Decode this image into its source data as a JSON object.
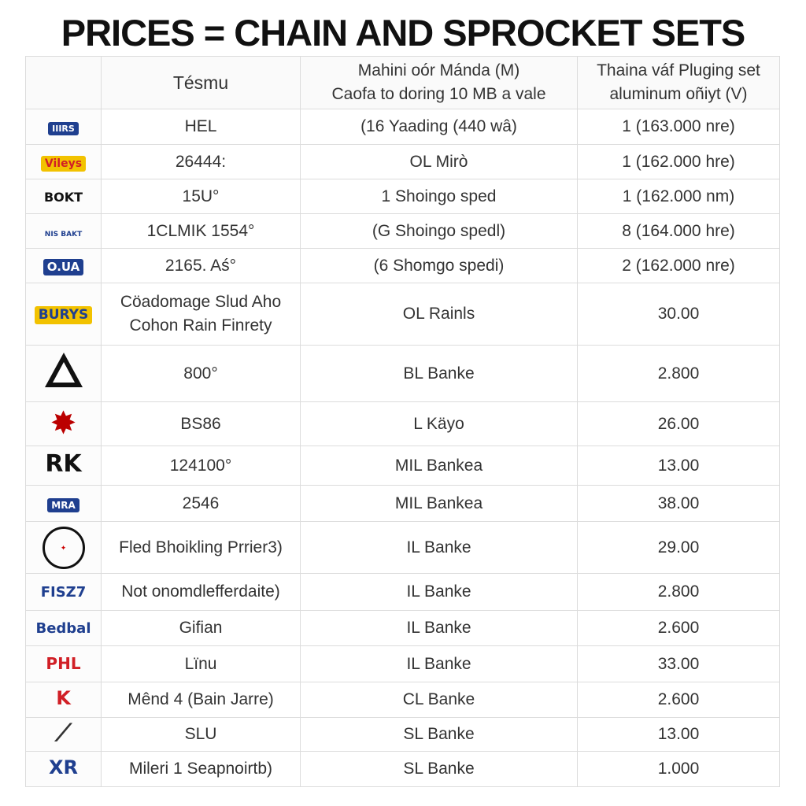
{
  "title": "PRICES = CHAIN AND SPROCKET SETS",
  "headers": {
    "brand": "",
    "col1": "Tésmu",
    "col2_line1": "Mahini oór Mánda (M)",
    "col2_line2": "Caofa to doring 10 MB a vale",
    "col3_line1": "Thaina váf Pluging set",
    "col3_line2": "aluminum oñiyt (V)"
  },
  "colors": {
    "red": "#d11f26",
    "blue": "#1f3f8f",
    "yellow": "#f2c200",
    "black": "#111111"
  },
  "rows": [
    {
      "logo_icon": "honda-shield-icon",
      "logo_text": "IIIRS",
      "col1_line1": "HEL",
      "col1_line2": "",
      "col2": "(16 Yaading (440 wâ)",
      "col3": "1 (163.000 nre)"
    },
    {
      "logo_icon": "yellow-badge-icon",
      "logo_text": "Vileys",
      "col1_line1": "26444:",
      "col1_line2": "",
      "col2": "OL Mirò",
      "col3": "1 (162.000 hre)"
    },
    {
      "logo_icon": "bokt-wordmark-icon",
      "logo_text": "BOKT",
      "col1_line1": "15U°",
      "col1_line2": "",
      "col2": "1 Shoingo sped",
      "col3": "1 (162.000 nm)"
    },
    {
      "logo_icon": "winged-emblem-icon",
      "logo_text": "NIS BAKT",
      "col1_line1": "1CLMIK 1554°",
      "col1_line2": "",
      "col2": "(G Shoingo spedl)",
      "col3": "8 (164.000 hre)"
    },
    {
      "logo_icon": "oua-badge-icon",
      "logo_text": "O.UA",
      "col1_line1": "2165. Aś°",
      "col1_line2": "",
      "col2": "(6 Shomgo spedi)",
      "col3": "2 (162.000 nre)"
    },
    {
      "logo_icon": "burys-badge-icon",
      "logo_text": "BURYS",
      "col1_line1": "Cöadomage Slud Aho",
      "col1_line2": "Cohon Rain Finrety",
      "col2": "OL Rainls",
      "col3": "30.00"
    },
    {
      "logo_icon": "triangle-emblem-icon",
      "logo_text": "",
      "col1_line1": "800°",
      "col1_line2": "",
      "col2": "BL Banke",
      "col3": "2.800"
    },
    {
      "logo_icon": "starburst-badge-icon",
      "logo_text": "",
      "col1_line1": "BS86",
      "col1_line2": "",
      "col2": "L Käyo",
      "col3": "26.00"
    },
    {
      "logo_icon": "rk-wordmark-icon",
      "logo_text": "RK",
      "col1_line1": "124100°",
      "col1_line2": "",
      "col2": "MIL Bankea",
      "col3": "13.00"
    },
    {
      "logo_icon": "mra-badge-icon",
      "logo_text": "MRA",
      "col1_line1": "2546",
      "col1_line2": "",
      "col2": "MIL Bankea",
      "col3": "38.00"
    },
    {
      "logo_icon": "round-seal-icon",
      "logo_text": "",
      "col1_line1": "Fled Bhoikling Prrier3)",
      "col1_line2": "",
      "col2": "IL Banke",
      "col3": "29.00"
    },
    {
      "logo_icon": "fisz-wordmark-icon",
      "logo_text": "FISZ7",
      "col1_line1": "Not onomdlefferdaite)",
      "col1_line2": "",
      "col2": "IL Banke",
      "col3": "2.800"
    },
    {
      "logo_icon": "bedbal-wordmark-icon",
      "logo_text": "Bedbal",
      "col1_line1": "Gifian",
      "col1_line2": "",
      "col2": "IL Banke",
      "col3": "2.600"
    },
    {
      "logo_icon": "phl-wordmark-icon",
      "logo_text": "PHL",
      "col1_line1": "Lïnu",
      "col1_line2": "",
      "col2": "IL Banke",
      "col3": "33.00"
    },
    {
      "logo_icon": "k-wordmark-icon",
      "logo_text": "K",
      "col1_line1": "Mênd 4 (Bain Jarre)",
      "col1_line2": "",
      "col2": "CL Banke",
      "col3": "2.600"
    },
    {
      "logo_icon": "swoosh-logo-icon",
      "logo_text": "",
      "col1_line1": "SLU",
      "col1_line2": "",
      "col2": "SL Banke",
      "col3": "13.00"
    },
    {
      "logo_icon": "xr-wordmark-icon",
      "logo_text": "XR",
      "col1_line1": "Mileri 1 Seapnoirtb)",
      "col1_line2": "",
      "col2": "SL Banke",
      "col3": "1.000"
    }
  ]
}
